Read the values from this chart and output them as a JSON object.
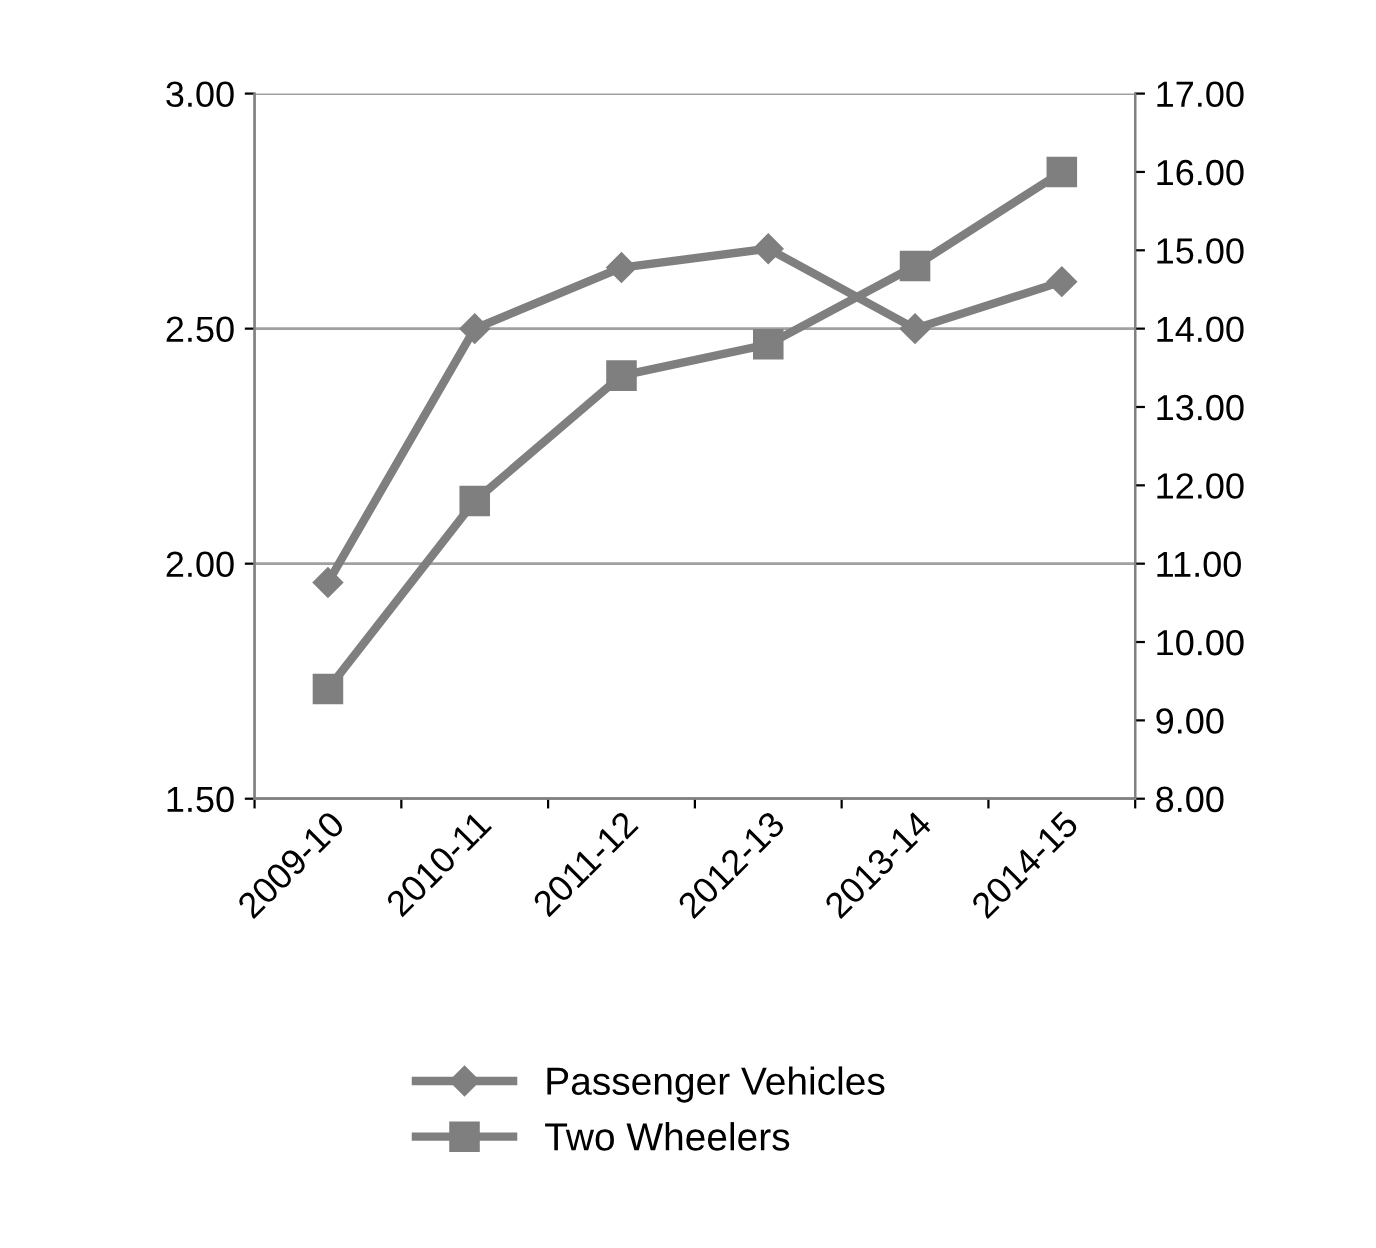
{
  "chart_data": {
    "type": "line",
    "categories": [
      "2009-10",
      "2010-11",
      "2011-12",
      "2012-13",
      "2013-14",
      "2014-15"
    ],
    "series": [
      {
        "name": "Passenger Vehicles",
        "color": "#7f7f7f",
        "marker": "diamond",
        "values": [
          1.96,
          2.5,
          2.63,
          2.67,
          2.5,
          2.6
        ]
      },
      {
        "name": "Two Wheelers",
        "color": "#7f7f7f",
        "marker": "square",
        "axis": "y2",
        "values": [
          9.4,
          11.8,
          13.4,
          13.8,
          14.8,
          16.0
        ]
      }
    ],
    "ylim": [
      1.5,
      3.0
    ],
    "yticks": [
      {
        "value": 1.5,
        "label": "1.50"
      },
      {
        "value": 2.0,
        "label": "2.00"
      },
      {
        "value": 2.5,
        "label": "2.50"
      },
      {
        "value": 3.0,
        "label": "3.00"
      }
    ],
    "y2lim": [
      8,
      17
    ],
    "y2ticks": [
      {
        "value": 8,
        "label": "8.00"
      },
      {
        "value": 9,
        "label": "9.00"
      },
      {
        "value": 10,
        "label": "10.00"
      },
      {
        "value": 11,
        "label": "11.00"
      },
      {
        "value": 12,
        "label": "12.00"
      },
      {
        "value": 13,
        "label": "13.00"
      },
      {
        "value": 14,
        "label": "14.00"
      },
      {
        "value": 15,
        "label": "15.00"
      },
      {
        "value": 16,
        "label": "16.00"
      },
      {
        "value": 17,
        "label": "17.00"
      }
    ],
    "grid": "y",
    "legend": "bottom",
    "line_style": "solid"
  }
}
